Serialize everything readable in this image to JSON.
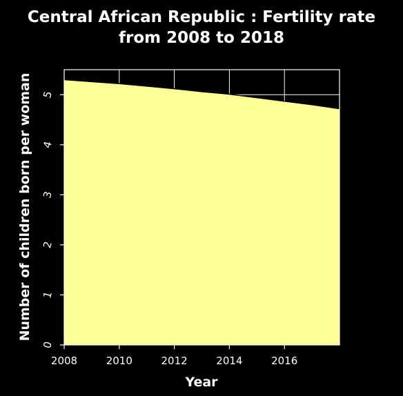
{
  "chart_data": {
    "type": "area",
    "title_line1": "Central African Republic : Fertility rate",
    "title_line2": "from 2008 to 2018",
    "xlabel": "Year",
    "ylabel": "Number of children born per woman",
    "x": [
      2008,
      2009,
      2010,
      2011,
      2012,
      2013,
      2014,
      2015,
      2016,
      2017,
      2018
    ],
    "series": [
      {
        "values": [
          5.3,
          5.26,
          5.22,
          5.17,
          5.12,
          5.06,
          5.01,
          4.94,
          4.87,
          4.8,
          4.72
        ]
      }
    ],
    "xlim": [
      2008,
      2018
    ],
    "ylim": [
      0,
      5.5
    ],
    "x_ticks": [
      2008,
      2010,
      2012,
      2014,
      2016
    ],
    "y_ticks": [
      0,
      1,
      2,
      3,
      4,
      5
    ],
    "grid": true,
    "colors": {
      "background": "#000000",
      "area_fill": "#ffff99",
      "text": "#ffffff",
      "grid": "#ffffff"
    }
  }
}
